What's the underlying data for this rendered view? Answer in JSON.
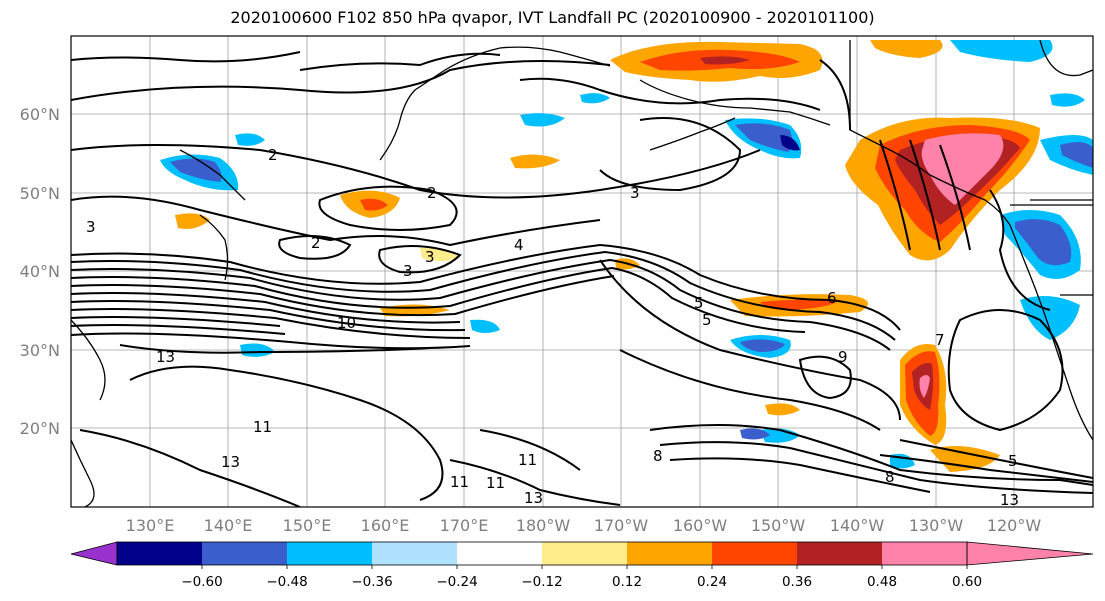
{
  "title": "2020100600 F102 850 hPa qvapor, IVT Landfall PC (2020100900 - 2020101100)",
  "map": {
    "lat_labels": [
      "60°N",
      "50°N",
      "40°N",
      "30°N",
      "20°N"
    ],
    "lon_labels": [
      "130°E",
      "140°E",
      "150°E",
      "160°E",
      "170°E",
      "180°W",
      "170°W",
      "160°W",
      "150°W",
      "140°W",
      "130°W",
      "120°W"
    ],
    "contour_labels": [
      "2",
      "2",
      "2",
      "3",
      "3",
      "3",
      "3",
      "4",
      "5",
      "5",
      "5",
      "6",
      "7",
      "8",
      "8",
      "9",
      "10",
      "11",
      "11",
      "11",
      "11",
      "13",
      "13",
      "13",
      "13"
    ]
  },
  "colorbar": {
    "colors": [
      "#9932cc",
      "#00008b",
      "#3a5fcd",
      "#00bfff",
      "#b0e2ff",
      "#ffffff",
      "#ffec8b",
      "#ffa500",
      "#ff4500",
      "#b22222",
      "#ff82ab"
    ],
    "ticks": [
      "−0.60",
      "−0.48",
      "−0.36",
      "−0.24",
      "−0.12",
      "0.12",
      "0.24",
      "0.36",
      "0.48",
      "0.60"
    ]
  }
}
